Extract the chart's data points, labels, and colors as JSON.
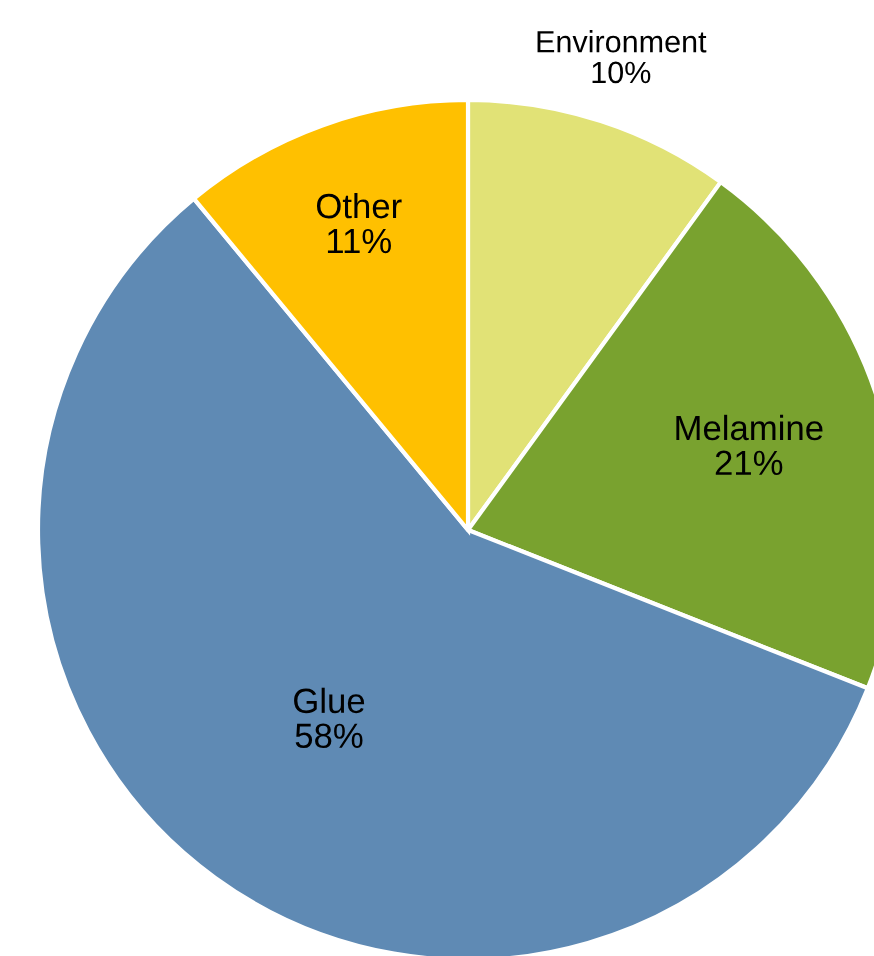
{
  "chart_data": {
    "type": "pie",
    "categories": [
      "Environment",
      "Melamine",
      "Glue",
      "Other"
    ],
    "values": [
      10,
      21,
      58,
      11
    ],
    "colors": [
      "#e1e276",
      "#79a22f",
      "#5f8ab4",
      "#ffc000"
    ],
    "value_labels": [
      "10%",
      "21%",
      "58%",
      "11%"
    ]
  }
}
